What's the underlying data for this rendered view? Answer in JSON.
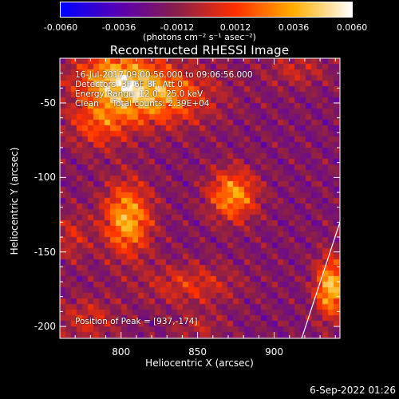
{
  "chart_data": {
    "type": "heatmap",
    "title": "Reconstructed RHESSI Image",
    "xlabel": "Heliocentric X (arcsec)",
    "ylabel": "Heliocentric Y (arcsec)",
    "xlim": [
      760,
      943
    ],
    "ylim": [
      -208,
      -20
    ],
    "x_ticks": [
      800,
      850,
      900
    ],
    "y_ticks": [
      -50,
      -100,
      -150,
      -200
    ],
    "colorbar": {
      "min": -0.006,
      "max": 0.006,
      "tick_labels": [
        "-0.0060",
        "-0.0036",
        "-0.0012",
        "0.0012",
        "0.0036",
        "0.0060"
      ],
      "tick_values": [
        -0.006,
        -0.0036,
        -0.0012,
        0.0012,
        0.0036,
        0.006
      ],
      "unit_label": "(photons cm⁻² s⁻¹ asec⁻²)",
      "colors": [
        "#0000ff",
        "#5a00b4",
        "#8a1f4a",
        "#ff3000",
        "#ffb000",
        "#ffffff"
      ]
    },
    "info_lines": [
      "16-Jul-2017 09:00:56.000 to 09:06:56.000",
      "Detectors: 3F 6F 8F, Att 0",
      "Energy Range: 12.0 - 25.0 keV",
      "Clean     Total counts: 2.39E+04"
    ],
    "peak_label": "Position of Peak = [937,-174]",
    "peak": [
      937,
      -174
    ],
    "sources": [
      {
        "x": 820,
        "y": -45,
        "sx": 26,
        "sy": 14,
        "amp": 0.0052
      },
      {
        "x": 795,
        "y": -32,
        "sx": 18,
        "sy": 12,
        "amp": 0.0042
      },
      {
        "x": 785,
        "y": -65,
        "sx": 14,
        "sy": 12,
        "amp": 0.0028
      },
      {
        "x": 804,
        "y": -128,
        "sx": 11,
        "sy": 17,
        "amp": 0.0055
      },
      {
        "x": 873,
        "y": -112,
        "sx": 11,
        "sy": 12,
        "amp": 0.005
      },
      {
        "x": 937,
        "y": -174,
        "sx": 7,
        "sy": 14,
        "amp": 0.006
      },
      {
        "x": 845,
        "y": -172,
        "sx": 22,
        "sy": 10,
        "amp": 0.0024
      },
      {
        "x": 778,
        "y": -195,
        "sx": 14,
        "sy": 10,
        "amp": 0.0022
      },
      {
        "x": 768,
        "y": -140,
        "sx": 8,
        "sy": 12,
        "amp": 0.002
      },
      {
        "x": 915,
        "y": -28,
        "sx": 14,
        "sy": 8,
        "amp": 0.0018
      },
      {
        "x": 850,
        "y": -200,
        "sx": 12,
        "sy": 6,
        "amp": 0.0016
      }
    ],
    "background": -0.0018,
    "limb_line": [
      [
        918,
        -208
      ],
      [
        943,
        -130
      ]
    ]
  },
  "footer": {
    "timestamp": "6-Sep-2022 01:26"
  }
}
